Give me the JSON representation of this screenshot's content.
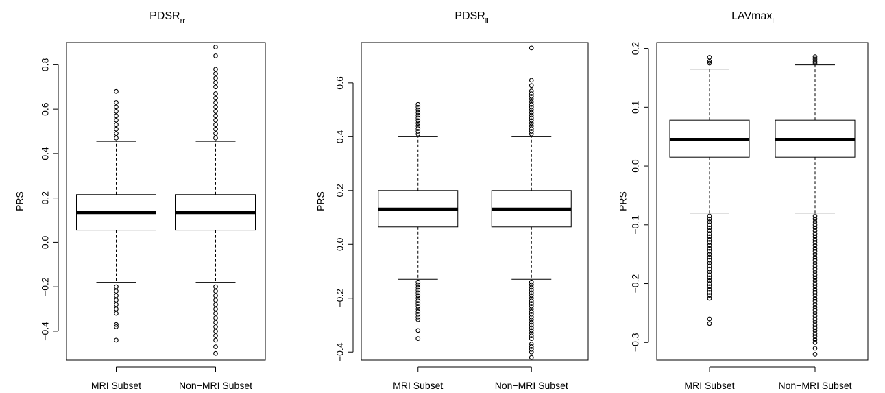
{
  "chart_data": [
    {
      "type": "boxplot",
      "title": "PDSR",
      "title_subscript": "rr",
      "ylabel": "PRS",
      "ylim": [
        -0.53,
        0.9
      ],
      "yticks": [
        -0.4,
        -0.2,
        0.0,
        0.2,
        0.4,
        0.6,
        0.8
      ],
      "ytick_labels": [
        "−0.4",
        "−0.2",
        "0.0",
        "0.2",
        "0.4",
        "0.6",
        "0.8"
      ],
      "categories": [
        "MRI Subset",
        "Non−MRI Subset"
      ],
      "boxes": [
        {
          "whisker_low": -0.18,
          "q1": 0.055,
          "median": 0.135,
          "q3": 0.215,
          "whisker_high": 0.455,
          "outliers_high": [
            0.47,
            0.49,
            0.51,
            0.53,
            0.55,
            0.57,
            0.59,
            0.61,
            0.63,
            0.68
          ],
          "outliers_low": [
            -0.2,
            -0.22,
            -0.24,
            -0.26,
            -0.28,
            -0.3,
            -0.32,
            -0.37,
            -0.38,
            -0.44
          ]
        },
        {
          "whisker_low": -0.18,
          "q1": 0.055,
          "median": 0.135,
          "q3": 0.215,
          "whisker_high": 0.455,
          "outliers_high": [
            0.47,
            0.49,
            0.51,
            0.53,
            0.55,
            0.57,
            0.59,
            0.61,
            0.63,
            0.65,
            0.67,
            0.7,
            0.72,
            0.74,
            0.76,
            0.78,
            0.84,
            0.88
          ],
          "outliers_low": [
            -0.2,
            -0.22,
            -0.24,
            -0.26,
            -0.28,
            -0.3,
            -0.32,
            -0.34,
            -0.36,
            -0.38,
            -0.4,
            -0.42,
            -0.44,
            -0.47,
            -0.5
          ]
        }
      ]
    },
    {
      "type": "boxplot",
      "title": "PDSR",
      "title_subscript": "ll",
      "ylabel": "PRS",
      "ylim": [
        -0.43,
        0.75
      ],
      "yticks": [
        -0.4,
        -0.2,
        0.0,
        0.2,
        0.4,
        0.6
      ],
      "ytick_labels": [
        "−0.4",
        "−0.2",
        "0.0",
        "0.2",
        "0.4",
        "0.6"
      ],
      "categories": [
        "MRI Subset",
        "Non−MRI Subset"
      ],
      "boxes": [
        {
          "whisker_low": -0.13,
          "q1": 0.065,
          "median": 0.13,
          "q3": 0.2,
          "whisker_high": 0.4,
          "outliers_high": [
            0.41,
            0.42,
            0.43,
            0.44,
            0.45,
            0.46,
            0.47,
            0.48,
            0.49,
            0.5,
            0.51,
            0.52
          ],
          "outliers_low": [
            -0.14,
            -0.15,
            -0.16,
            -0.17,
            -0.18,
            -0.19,
            -0.2,
            -0.21,
            -0.22,
            -0.23,
            -0.24,
            -0.25,
            -0.26,
            -0.27,
            -0.28,
            -0.32,
            -0.35
          ]
        },
        {
          "whisker_low": -0.13,
          "q1": 0.065,
          "median": 0.13,
          "q3": 0.2,
          "whisker_high": 0.4,
          "outliers_high": [
            0.41,
            0.42,
            0.43,
            0.44,
            0.45,
            0.46,
            0.47,
            0.48,
            0.49,
            0.5,
            0.51,
            0.52,
            0.53,
            0.54,
            0.55,
            0.56,
            0.57,
            0.59,
            0.61,
            0.73
          ],
          "outliers_low": [
            -0.14,
            -0.15,
            -0.16,
            -0.17,
            -0.18,
            -0.19,
            -0.2,
            -0.21,
            -0.22,
            -0.23,
            -0.24,
            -0.25,
            -0.26,
            -0.27,
            -0.28,
            -0.29,
            -0.3,
            -0.31,
            -0.32,
            -0.33,
            -0.34,
            -0.35,
            -0.37,
            -0.38,
            -0.39,
            -0.4,
            -0.42
          ]
        }
      ]
    },
    {
      "type": "boxplot",
      "title": "LAVmax",
      "title_subscript": "i",
      "ylabel": "PRS",
      "ylim": [
        -0.33,
        0.21
      ],
      "yticks": [
        -0.3,
        -0.2,
        -0.1,
        0.0,
        0.1,
        0.2
      ],
      "ytick_labels": [
        "−0.3",
        "−0.2",
        "−0.1",
        "0.0",
        "0.1",
        "0.2"
      ],
      "categories": [
        "MRI Subset",
        "Non−MRI Subset"
      ],
      "boxes": [
        {
          "whisker_low": -0.08,
          "q1": 0.015,
          "median": 0.045,
          "q3": 0.078,
          "whisker_high": 0.165,
          "outliers_high": [
            0.175,
            0.178,
            0.185
          ],
          "outliers_low": [
            -0.085,
            -0.09,
            -0.095,
            -0.1,
            -0.105,
            -0.11,
            -0.115,
            -0.12,
            -0.125,
            -0.13,
            -0.135,
            -0.14,
            -0.145,
            -0.15,
            -0.155,
            -0.16,
            -0.165,
            -0.17,
            -0.175,
            -0.18,
            -0.185,
            -0.19,
            -0.195,
            -0.2,
            -0.205,
            -0.21,
            -0.215,
            -0.22,
            -0.225,
            -0.26,
            -0.268
          ]
        },
        {
          "whisker_low": -0.08,
          "q1": 0.015,
          "median": 0.045,
          "q3": 0.078,
          "whisker_high": 0.172,
          "outliers_high": [
            0.175,
            0.178,
            0.182,
            0.186
          ],
          "outliers_low": [
            -0.085,
            -0.09,
            -0.095,
            -0.1,
            -0.105,
            -0.11,
            -0.115,
            -0.12,
            -0.125,
            -0.13,
            -0.135,
            -0.14,
            -0.145,
            -0.15,
            -0.155,
            -0.16,
            -0.165,
            -0.17,
            -0.175,
            -0.18,
            -0.185,
            -0.19,
            -0.195,
            -0.2,
            -0.205,
            -0.21,
            -0.215,
            -0.22,
            -0.225,
            -0.23,
            -0.235,
            -0.24,
            -0.245,
            -0.25,
            -0.255,
            -0.26,
            -0.265,
            -0.27,
            -0.275,
            -0.28,
            -0.285,
            -0.29,
            -0.295,
            -0.3,
            -0.31,
            -0.32
          ]
        }
      ]
    }
  ]
}
